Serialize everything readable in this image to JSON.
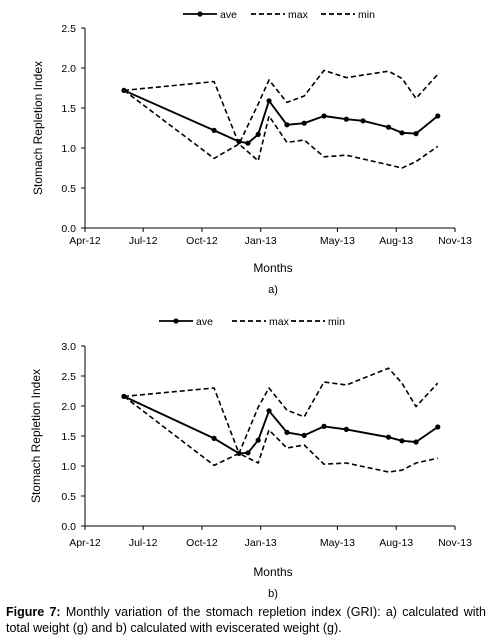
{
  "chart_data": [
    {
      "type": "line",
      "panel_label": "a)",
      "xlabel": "Months",
      "ylabel": "Stomach Repletion Index",
      "x_ticks": [
        "Apr-12",
        "Jul-12",
        "Oct-12",
        "Jan-13",
        "May-13",
        "Aug-13",
        "Nov-13"
      ],
      "x_tick_dates": [
        "2012-04-01",
        "2012-07-01",
        "2012-10-01",
        "2013-01-01",
        "2013-05-01",
        "2013-08-01",
        "2013-11-01"
      ],
      "y_ticks": [
        "0.0",
        "0.5",
        "1.0",
        "1.5",
        "2.0",
        "2.5"
      ],
      "ylim": [
        0,
        2.5
      ],
      "legend_position": "top",
      "series": [
        {
          "name": "ave",
          "style": "solid-markers",
          "x": [
            "2012-06-01",
            "2012-10-20",
            "2012-11-28",
            "2012-12-12",
            "2012-12-28",
            "2013-01-14",
            "2013-02-11",
            "2013-03-10",
            "2013-04-10",
            "2013-05-15",
            "2013-06-10",
            "2013-07-20",
            "2013-08-10",
            "2013-09-01",
            "2013-10-05"
          ],
          "values": [
            1.72,
            1.22,
            1.08,
            1.06,
            1.17,
            1.59,
            1.29,
            1.31,
            1.4,
            1.36,
            1.34,
            1.26,
            1.19,
            1.18,
            1.4
          ]
        },
        {
          "name": "max",
          "style": "dashed",
          "x": [
            "2012-06-01",
            "2012-10-20",
            "2012-11-28",
            "2012-12-28",
            "2013-01-14",
            "2013-02-11",
            "2013-03-10",
            "2013-04-10",
            "2013-05-15",
            "2013-07-20",
            "2013-08-10",
            "2013-09-01",
            "2013-10-05"
          ],
          "values": [
            1.72,
            1.83,
            1.05,
            1.55,
            1.85,
            1.57,
            1.65,
            1.97,
            1.88,
            1.96,
            1.87,
            1.62,
            1.92
          ]
        },
        {
          "name": "min",
          "style": "dashed",
          "x": [
            "2012-06-01",
            "2012-10-20",
            "2012-11-28",
            "2012-12-28",
            "2013-01-14",
            "2013-02-11",
            "2013-03-10",
            "2013-04-10",
            "2013-05-15",
            "2013-07-20",
            "2013-08-10",
            "2013-09-01",
            "2013-10-05"
          ],
          "values": [
            1.72,
            0.87,
            1.05,
            0.84,
            1.4,
            1.07,
            1.1,
            0.89,
            0.91,
            0.79,
            0.75,
            0.83,
            1.02
          ]
        }
      ]
    },
    {
      "type": "line",
      "panel_label": "b)",
      "xlabel": "Months",
      "ylabel": "Stomach Repletion Index",
      "x_ticks": [
        "Apr-12",
        "Jul-12",
        "Oct-12",
        "Jan-13",
        "May-13",
        "Aug-13",
        "Nov-13"
      ],
      "x_tick_dates": [
        "2012-04-01",
        "2012-07-01",
        "2012-10-01",
        "2013-01-01",
        "2013-05-01",
        "2013-08-01",
        "2013-11-01"
      ],
      "y_ticks": [
        "0.0",
        "0.5",
        "1.0",
        "1.5",
        "2.0",
        "2.5",
        "3.0"
      ],
      "ylim": [
        0,
        3.0
      ],
      "legend_position": "top",
      "series": [
        {
          "name": "ave",
          "style": "solid-markers",
          "x": [
            "2012-06-01",
            "2012-10-20",
            "2012-11-28",
            "2012-12-12",
            "2012-12-28",
            "2013-01-14",
            "2013-02-11",
            "2013-03-10",
            "2013-04-10",
            "2013-05-15",
            "2013-07-20",
            "2013-08-10",
            "2013-09-01",
            "2013-10-05"
          ],
          "values": [
            2.16,
            1.46,
            1.21,
            1.22,
            1.43,
            1.92,
            1.56,
            1.51,
            1.66,
            1.61,
            1.48,
            1.42,
            1.4,
            1.65
          ]
        },
        {
          "name": "max",
          "style": "dashed",
          "x": [
            "2012-06-01",
            "2012-10-20",
            "2012-11-28",
            "2012-12-28",
            "2013-01-14",
            "2013-02-11",
            "2013-03-10",
            "2013-04-10",
            "2013-05-15",
            "2013-07-20",
            "2013-08-10",
            "2013-09-01",
            "2013-10-05"
          ],
          "values": [
            2.16,
            2.3,
            1.21,
            1.98,
            2.3,
            1.93,
            1.82,
            2.4,
            2.35,
            2.63,
            2.38,
            1.99,
            2.38
          ]
        },
        {
          "name": "min",
          "style": "dashed",
          "x": [
            "2012-06-01",
            "2012-10-20",
            "2012-11-28",
            "2012-12-28",
            "2013-01-14",
            "2013-02-11",
            "2013-03-10",
            "2013-04-10",
            "2013-05-15",
            "2013-07-20",
            "2013-08-10",
            "2013-09-01",
            "2013-10-05"
          ],
          "values": [
            2.16,
            1.01,
            1.21,
            1.05,
            1.6,
            1.3,
            1.35,
            1.03,
            1.05,
            0.9,
            0.93,
            1.05,
            1.13
          ]
        }
      ]
    }
  ],
  "caption": {
    "label": "Figure 7:",
    "text": " Monthly variation of the stomach repletion index (GRI): a) calculated with total weight (g) and b) calculated with eviscerated weight (g)."
  }
}
